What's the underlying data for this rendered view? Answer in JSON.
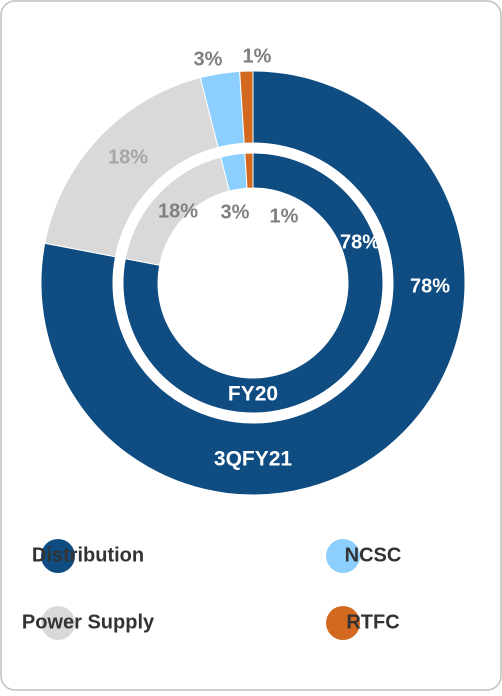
{
  "chart_data": {
    "type": "donut",
    "categories": [
      "Distribution",
      "Power Supply",
      "NCSC",
      "RTFC"
    ],
    "colors": [
      "#0f4c81",
      "#d9d9d9",
      "#8ccfff",
      "#d2691e"
    ],
    "series": [
      {
        "name": "3QFY21",
        "values": [
          78,
          18,
          3,
          1
        ],
        "value_labels": [
          "78%",
          "18%",
          "3%",
          "1%"
        ]
      },
      {
        "name": "FY20",
        "values": [
          78,
          18,
          3,
          1
        ],
        "value_labels": [
          "78%",
          "18%",
          "3%",
          "1%"
        ]
      }
    ]
  }
}
